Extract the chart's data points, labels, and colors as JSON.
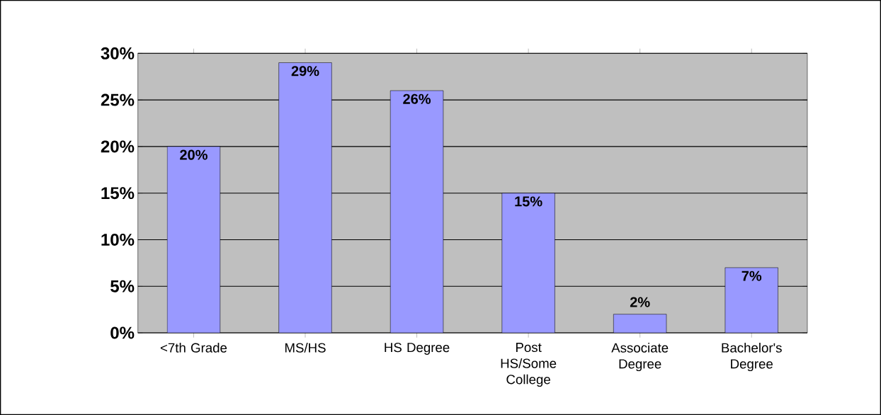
{
  "chart_data": {
    "type": "bar",
    "categories": [
      "<7th Grade",
      "MS/HS",
      "HS Degree",
      "Post HS/Some College",
      "Associate Degree",
      "Bachelor's Degree"
    ],
    "values": [
      20,
      29,
      26,
      15,
      2,
      7
    ],
    "value_labels": [
      "20%",
      "29%",
      "26%",
      "15%",
      "2%",
      "7%"
    ],
    "color": "#9999ff",
    "ylim": [
      0,
      30
    ],
    "yticks": [
      {
        "value": 0,
        "label": "0%"
      },
      {
        "value": 5,
        "label": "5%"
      },
      {
        "value": 10,
        "label": "10%"
      },
      {
        "value": 15,
        "label": "15%"
      },
      {
        "value": 20,
        "label": "20%"
      },
      {
        "value": 25,
        "label": "25%"
      },
      {
        "value": 30,
        "label": "30%"
      }
    ],
    "grid": "y"
  }
}
